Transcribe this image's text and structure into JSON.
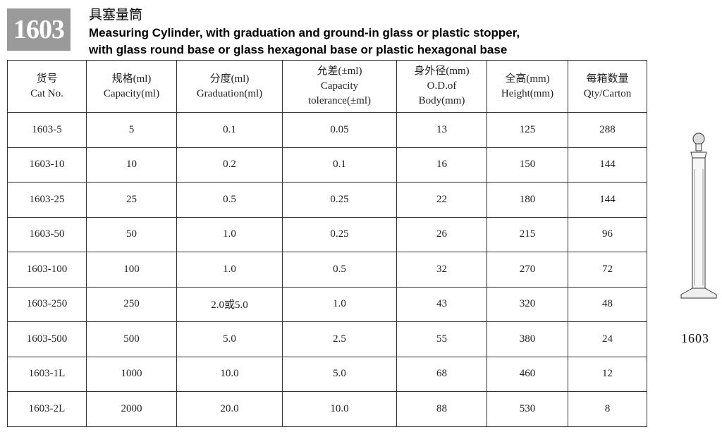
{
  "badge": "1603",
  "title_cn": "具塞量筒",
  "title_en": [
    "Measuring Cylinder, with graduation and ground-in glass or plastic stopper,",
    "with glass round base or glass hexagonal base or plastic hexagonal base"
  ],
  "table": {
    "header": [
      [
        "货号",
        "Cat No."
      ],
      [
        "规格(ml)",
        "Capacity(ml)"
      ],
      [
        "分度(ml)",
        "Graduation(ml)"
      ],
      [
        "允差(±ml)",
        "Capacity",
        "tolerance(±ml)"
      ],
      [
        "身外径(mm)",
        "O.D.of",
        "Body(mm)"
      ],
      [
        "全高(mm)",
        "Height(mm)"
      ],
      [
        "每箱数量",
        "Qty/Carton"
      ]
    ],
    "rows": [
      [
        "1603-5",
        "5",
        "0.1",
        "0.05",
        "13",
        "125",
        "288"
      ],
      [
        "1603-10",
        "10",
        "0.2",
        "0.1",
        "16",
        "150",
        "144"
      ],
      [
        "1603-25",
        "25",
        "0.5",
        "0.25",
        "22",
        "180",
        "144"
      ],
      [
        "1603-50",
        "50",
        "1.0",
        "0.25",
        "26",
        "215",
        "96"
      ],
      [
        "1603-100",
        "100",
        "1.0",
        "0.5",
        "32",
        "270",
        "72"
      ],
      [
        "1603-250",
        "250",
        "2.0或5.0",
        "1.0",
        "43",
        "320",
        "48"
      ],
      [
        "1603-500",
        "500",
        "5.0",
        "2.5",
        "55",
        "380",
        "24"
      ],
      [
        "1603-1L",
        "1000",
        "10.0",
        "5.0",
        "68",
        "460",
        "12"
      ],
      [
        "1603-2L",
        "2000",
        "20.0",
        "10.0",
        "88",
        "530",
        "8"
      ]
    ]
  },
  "figure_label": "1603"
}
